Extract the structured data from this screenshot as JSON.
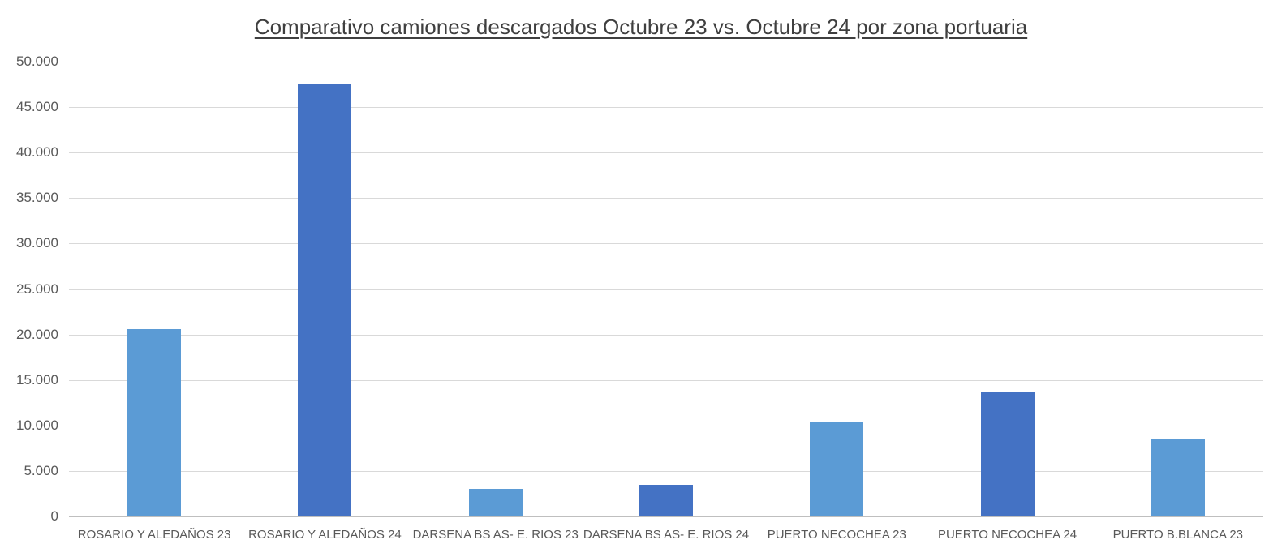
{
  "chart_data": {
    "type": "bar",
    "title": "Comparativo camiones descargados Octubre 23 vs. Octubre 24 por zona portuaria",
    "categories": [
      "ROSARIO Y ALEDAÑOS 23",
      "ROSARIO Y ALEDAÑOS 24",
      "DARSENA BS AS- E. RIOS 23",
      "DARSENA BS AS- E. RIOS 24",
      "PUERTO NECOCHEA 23",
      "PUERTO NECOCHEA 24",
      "PUERTO B.BLANCA 23"
    ],
    "values": [
      20600,
      47600,
      3000,
      3500,
      10400,
      13600,
      8500
    ],
    "bar_colors": [
      "#5B9BD5",
      "#4472C4",
      "#5B9BD5",
      "#4472C4",
      "#5B9BD5",
      "#4472C4",
      "#5B9BD5"
    ],
    "xlabel": "",
    "ylabel": "",
    "ylim": [
      0,
      50000
    ],
    "y_tick_values": [
      0,
      5000,
      10000,
      15000,
      20000,
      25000,
      30000,
      35000,
      40000,
      45000,
      50000
    ],
    "y_tick_labels": [
      "0",
      "5.000",
      "10.000",
      "15.000",
      "20.000",
      "25.000",
      "30.000",
      "35.000",
      "40.000",
      "45.000",
      "50.000"
    ],
    "grid": true,
    "legend_position": "none",
    "colors": {
      "series_23": "#5B9BD5",
      "series_24": "#4472C4",
      "gridline": "#D9D9D9",
      "axis_line": "#BFBFBF",
      "axis_text": "#595959",
      "title_text": "#3F3F3F",
      "background": "#FFFFFF"
    }
  }
}
